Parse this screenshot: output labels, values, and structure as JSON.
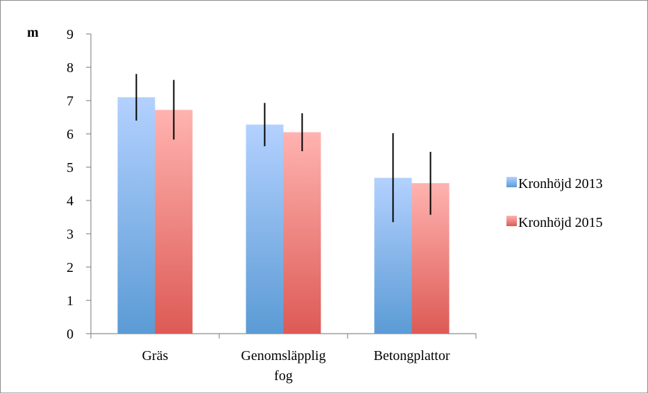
{
  "chart_data": {
    "type": "bar",
    "ylabel": "m",
    "categories": [
      "Gräs",
      "Genomsläpplig fog",
      "Betongplattor"
    ],
    "category_lines": [
      [
        "Gräs"
      ],
      [
        "Genomsläpplig",
        "fog"
      ],
      [
        "Betongplattor"
      ]
    ],
    "series": [
      {
        "name": "Kronhöjd 2013",
        "values": [
          7.1,
          6.28,
          4.68
        ],
        "error_low": [
          6.4,
          5.63,
          3.35
        ],
        "error_high": [
          7.8,
          6.93,
          6.02
        ],
        "color_top": "#b3d1ff",
        "color_bottom": "#5b9bd5"
      },
      {
        "name": "Kronhöjd 2015",
        "values": [
          6.72,
          6.05,
          4.52
        ],
        "error_low": [
          5.83,
          5.48,
          3.57
        ],
        "error_high": [
          7.62,
          6.62,
          5.46
        ],
        "color_top": "#ffb3b0",
        "color_bottom": "#dd5a55"
      }
    ],
    "ylim": [
      0,
      9
    ],
    "yticks": [
      0,
      1,
      2,
      3,
      4,
      5,
      6,
      7,
      8,
      9
    ],
    "legend_position": "right",
    "grid": false
  }
}
